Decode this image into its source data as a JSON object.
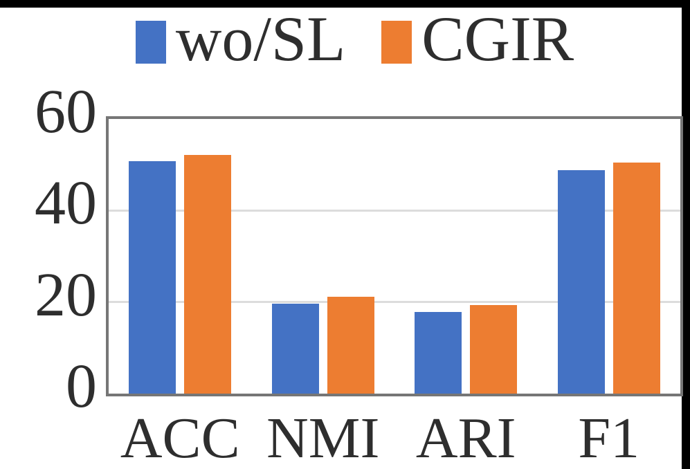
{
  "chart_data": {
    "type": "bar",
    "title": "",
    "categories": [
      "ACC",
      "NMI",
      "ARI",
      "F1"
    ],
    "series": [
      {
        "name": "wo/SL",
        "color": "#4472C4",
        "values": [
          50.8,
          19.7,
          17.8,
          48.8
        ]
      },
      {
        "name": "CGIR",
        "color": "#ED7D31",
        "values": [
          52.2,
          21.1,
          19.4,
          50.5
        ]
      }
    ],
    "ylim": [
      0,
      60
    ],
    "yticks": [
      0,
      20,
      40,
      60
    ],
    "gridline_values": [
      20,
      40
    ],
    "grid": "horizontal",
    "legend_position": "top"
  },
  "legend": {
    "items": [
      {
        "label": "wo/SL",
        "color": "#4472C4"
      },
      {
        "label": "CGIR",
        "color": "#ED7D31"
      }
    ]
  },
  "colors": {
    "bar_blue": "#4472C4",
    "bar_orange": "#ED7D31",
    "axis_border": "#767676",
    "gridline": "#DCDCDC",
    "text": "#2E2E2E",
    "edge_frame": "#000000",
    "background": "#FFFFFF"
  }
}
